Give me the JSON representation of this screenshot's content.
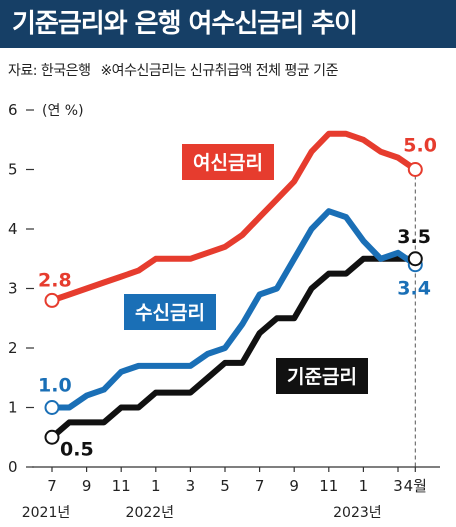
{
  "title": "기준금리와 은행 여수신금리 추이",
  "source": {
    "label": "자료: 한국은행",
    "note": "※여수신금리는 신규취급액 전체 평균 기준"
  },
  "chart_data": {
    "type": "line",
    "y_unit": "(연 %)",
    "ylim": [
      0,
      6
    ],
    "y_ticks": [
      0,
      1,
      2,
      3,
      4,
      5,
      6
    ],
    "x_ticks": [
      {
        "index": 0,
        "label": "7"
      },
      {
        "index": 2,
        "label": "9"
      },
      {
        "index": 4,
        "label": "11"
      },
      {
        "index": 6,
        "label": "1"
      },
      {
        "index": 8,
        "label": "3"
      },
      {
        "index": 10,
        "label": "5"
      },
      {
        "index": 12,
        "label": "7"
      },
      {
        "index": 14,
        "label": "9"
      },
      {
        "index": 16,
        "label": "11"
      },
      {
        "index": 18,
        "label": "1"
      },
      {
        "index": 20,
        "label": "3"
      },
      {
        "index": 21,
        "label": "4월"
      }
    ],
    "year_labels": [
      {
        "index": 0,
        "label": "2021년"
      },
      {
        "index": 6,
        "label": "2022년"
      },
      {
        "index": 18,
        "label": "2023년"
      }
    ],
    "months": [
      "2021-07",
      "2021-08",
      "2021-09",
      "2021-10",
      "2021-11",
      "2021-12",
      "2022-01",
      "2022-02",
      "2022-03",
      "2022-04",
      "2022-05",
      "2022-06",
      "2022-07",
      "2022-08",
      "2022-09",
      "2022-10",
      "2022-11",
      "2022-12",
      "2023-01",
      "2023-02",
      "2023-03",
      "2023-04"
    ],
    "series": [
      {
        "name": "여신금리",
        "color": "#e63c2e",
        "values": [
          2.8,
          2.9,
          3.0,
          3.1,
          3.2,
          3.3,
          3.5,
          3.5,
          3.5,
          3.6,
          3.7,
          3.9,
          4.2,
          4.5,
          4.8,
          5.3,
          5.6,
          5.6,
          5.5,
          5.3,
          5.2,
          5.0
        ],
        "start_label": "2.8",
        "end_label": "5.0"
      },
      {
        "name": "수신금리",
        "color": "#1a6fb6",
        "values": [
          1.0,
          1.0,
          1.2,
          1.3,
          1.6,
          1.7,
          1.7,
          1.7,
          1.7,
          1.9,
          2.0,
          2.4,
          2.9,
          3.0,
          3.5,
          4.0,
          4.3,
          4.2,
          3.8,
          3.5,
          3.6,
          3.4
        ],
        "start_label": "1.0",
        "end_label": "3.4"
      },
      {
        "name": "기준금리",
        "color": "#111111",
        "values": [
          0.5,
          0.75,
          0.75,
          0.75,
          1.0,
          1.0,
          1.25,
          1.25,
          1.25,
          1.5,
          1.75,
          1.75,
          2.25,
          2.5,
          2.5,
          3.0,
          3.25,
          3.25,
          3.5,
          3.5,
          3.5,
          3.5
        ],
        "start_label": "0.5",
        "end_label": "3.5"
      }
    ]
  }
}
